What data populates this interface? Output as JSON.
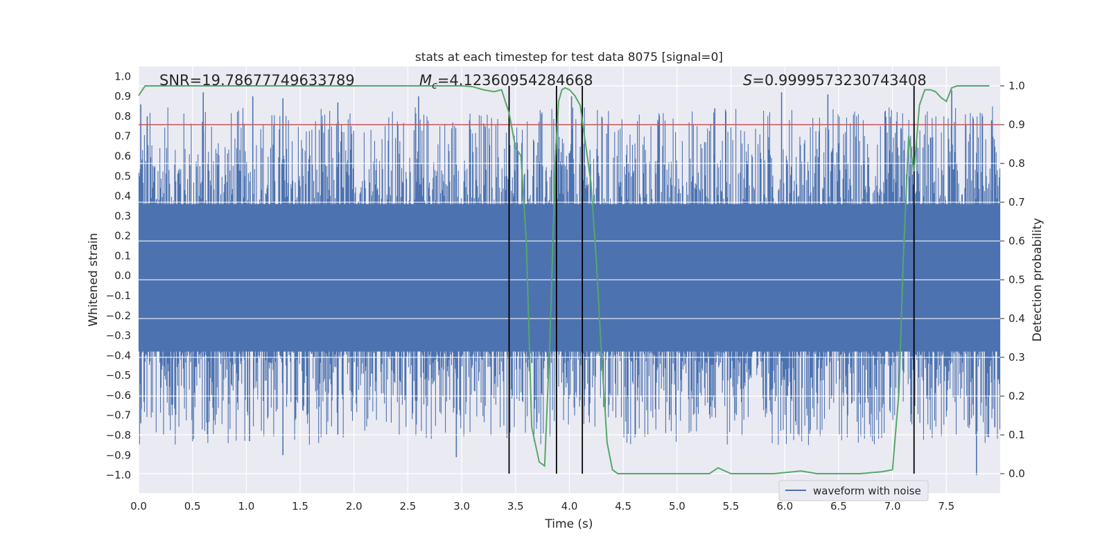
{
  "chart_data": {
    "type": "line",
    "title": "stats at each timestep for test data 8075 [signal=0]",
    "xlabel": "Time (s)",
    "ylabel_left": "Whitened strain",
    "ylabel_right": "Detection probability",
    "xlim": [
      0.0,
      8.0
    ],
    "ylim_left": [
      -1.09,
      1.05
    ],
    "ylim_right": [
      -0.05,
      1.05
    ],
    "x_ticks": [
      "0.0",
      "0.5",
      "1.0",
      "1.5",
      "2.0",
      "2.5",
      "3.0",
      "3.5",
      "4.0",
      "4.5",
      "5.0",
      "5.5",
      "6.0",
      "6.5",
      "7.0",
      "7.5"
    ],
    "y_left_ticks": [
      "1.0",
      "0.9",
      "0.8",
      "0.7",
      "0.6",
      "0.5",
      "0.4",
      "0.3",
      "0.2",
      "0.1",
      "0.0",
      "−0.1",
      "−0.2",
      "−0.3",
      "−0.4",
      "−0.5",
      "−0.6",
      "−0.7",
      "−0.8",
      "−0.9",
      "−1.0"
    ],
    "y_right_ticks": [
      "1.0",
      "0.9",
      "0.8",
      "0.7",
      "0.6",
      "0.5",
      "0.4",
      "0.3",
      "0.2",
      "0.1",
      "0.0"
    ],
    "grid": true,
    "legend": {
      "label": "waveform with noise",
      "position": "bottom-right"
    },
    "annotations": {
      "snr": "SNR=19.78677749633789",
      "mc_symbol": "M",
      "mc_sub": "c",
      "mc_value": "=4.12360954284668",
      "s_symbol": "S",
      "s_value": "=0.9999573230743408"
    },
    "threshold": {
      "value": 0.9,
      "axis": "right",
      "color": "#c44e52"
    },
    "vertical_markers": [
      3.44,
      3.88,
      4.12,
      7.2
    ],
    "series": [
      {
        "name": "waveform with noise",
        "axis": "left",
        "color": "#4c72b0",
        "description": "dense whitened-noise strain, peaks roughly within [-1.0, 0.93]",
        "peaks_high": [
          [
            0.02,
            0.86
          ],
          [
            0.08,
            0.8
          ],
          [
            0.6,
            0.92
          ],
          [
            1.06,
            0.9
          ],
          [
            1.34,
            0.89
          ],
          [
            1.85,
            0.87
          ],
          [
            2.6,
            0.9
          ],
          [
            4.02,
            0.9
          ],
          [
            5.35,
            0.84
          ],
          [
            5.97,
            0.92
          ],
          [
            6.4,
            0.91
          ],
          [
            7.55,
            0.93
          ],
          [
            7.92,
            0.78
          ]
        ],
        "peaks_low": [
          [
            0.02,
            -0.74
          ],
          [
            1.03,
            -0.83
          ],
          [
            1.34,
            -0.9
          ],
          [
            1.85,
            -0.8
          ],
          [
            2.95,
            -0.91
          ],
          [
            6.1,
            -0.73
          ],
          [
            7.78,
            -1.0
          ],
          [
            7.95,
            -0.76
          ]
        ]
      },
      {
        "name": "detection probability",
        "axis": "right",
        "color": "#55a868",
        "x": [
          0.0,
          0.06,
          0.5,
          1.0,
          2.0,
          3.0,
          3.1,
          3.2,
          3.3,
          3.37,
          3.44,
          3.5,
          3.55,
          3.6,
          3.65,
          3.72,
          3.77,
          3.82,
          3.87,
          3.9,
          3.93,
          3.96,
          4.0,
          4.05,
          4.1,
          4.15,
          4.2,
          4.25,
          4.3,
          4.35,
          4.4,
          4.45,
          4.6,
          5.0,
          5.3,
          5.38,
          5.5,
          5.9,
          6.15,
          6.3,
          6.7,
          6.9,
          7.0,
          7.06,
          7.1,
          7.15,
          7.2,
          7.25,
          7.3,
          7.35,
          7.4,
          7.45,
          7.5,
          7.55,
          7.6,
          7.65,
          7.7,
          7.8,
          7.9
        ],
        "y": [
          0.975,
          1.0,
          1.0,
          1.0,
          1.0,
          1.0,
          0.998,
          0.99,
          0.985,
          0.99,
          0.93,
          0.84,
          0.82,
          0.6,
          0.12,
          0.03,
          0.02,
          0.35,
          0.82,
          0.96,
          0.99,
          0.995,
          0.99,
          0.975,
          0.95,
          0.85,
          0.75,
          0.55,
          0.3,
          0.08,
          0.01,
          0.0,
          0.0,
          0.0,
          0.0,
          0.015,
          0.0,
          0.0,
          0.007,
          0.0,
          0.0,
          0.005,
          0.01,
          0.21,
          0.55,
          0.87,
          0.78,
          0.95,
          0.99,
          0.99,
          0.985,
          0.97,
          0.96,
          0.995,
          1.0,
          1.0,
          1.0,
          1.0,
          1.0
        ]
      }
    ]
  }
}
